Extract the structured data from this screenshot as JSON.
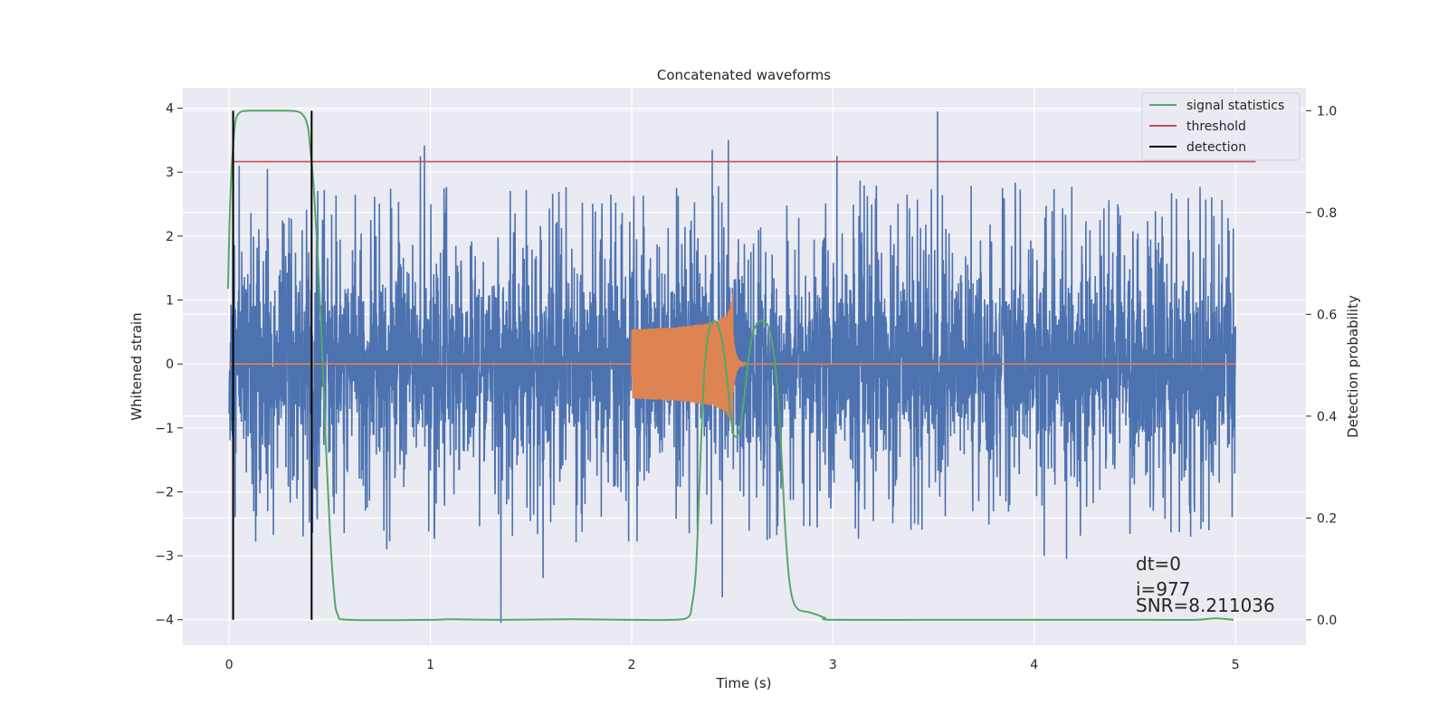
{
  "chart_data": {
    "type": "line",
    "title": "Concatenated waveforms",
    "xlabel": "Time (s)",
    "ylabel": "Whitened strain",
    "y2label": "Detection probability",
    "xlim": [
      -0.23,
      5.35
    ],
    "ylim": [
      -4.4,
      4.32
    ],
    "y2lim": [
      -0.05,
      1.045
    ],
    "x_ticks": [
      0,
      1,
      2,
      3,
      4,
      5
    ],
    "y_ticks": [
      -4,
      -3,
      -2,
      -1,
      0,
      1,
      2,
      3,
      4
    ],
    "y2_ticks": [
      0.0,
      0.2,
      0.4,
      0.6,
      0.8,
      1.0
    ],
    "y2_tick_labels": [
      "0.0",
      "0.2",
      "0.4",
      "0.6",
      "0.8",
      "1.0"
    ],
    "grid": true,
    "legend_position": "top-right",
    "series": [
      {
        "name": "",
        "kind": "noise",
        "axis": "left",
        "color": "#4c72b0",
        "x_range": [
          0,
          5
        ],
        "peaks": [
          {
            "x": 0.02,
            "y": 2.6
          },
          {
            "x": 0.05,
            "y": 3.1
          },
          {
            "x": 0.19,
            "y": 3.05
          },
          {
            "x": 0.95,
            "y": 3.25
          },
          {
            "x": 0.97,
            "y": 3.42
          },
          {
            "x": 1.35,
            "y": -4.05
          },
          {
            "x": 1.56,
            "y": -3.35
          },
          {
            "x": 2.4,
            "y": 3.35
          },
          {
            "x": 2.45,
            "y": -3.65
          },
          {
            "x": 2.48,
            "y": 3.5
          },
          {
            "x": 3.02,
            "y": 3.25
          },
          {
            "x": 3.52,
            "y": 3.95
          },
          {
            "x": 4.05,
            "y": -3.0
          },
          {
            "x": 4.16,
            "y": -3.05
          }
        ]
      },
      {
        "name": "",
        "kind": "chirp",
        "axis": "left",
        "color": "#dd8452",
        "start": 2.0,
        "merger": 2.5,
        "end": 2.57,
        "amp_start": 0.3,
        "amp_peak": 1.12,
        "amp_min": -1.3
      },
      {
        "name": "signal statistics",
        "axis": "right",
        "color": "#55a868",
        "x": [
          -0.005,
          0.0,
          0.01,
          0.02,
          0.03,
          0.04,
          0.06,
          0.1,
          0.2,
          0.33,
          0.37,
          0.39,
          0.4,
          0.42,
          0.44,
          0.46,
          0.48,
          0.5,
          0.52,
          0.54,
          0.6,
          1.0,
          1.1,
          1.35,
          1.7,
          2.0,
          2.2,
          2.28,
          2.3,
          2.32,
          2.34,
          2.36,
          2.38,
          2.4,
          2.42,
          2.44,
          2.46,
          2.48,
          2.5,
          2.52,
          2.54,
          2.56,
          2.58,
          2.6,
          2.63,
          2.66,
          2.68,
          2.7,
          2.72,
          2.74,
          2.76,
          2.78,
          2.8,
          2.83,
          2.88,
          2.92,
          2.96,
          3.0,
          3.5,
          4.0,
          4.5,
          4.8,
          4.9,
          4.99
        ],
        "y": [
          0.65,
          0.75,
          0.87,
          0.93,
          0.975,
          0.99,
          0.998,
          1.0,
          1.0,
          0.999,
          0.99,
          0.97,
          0.94,
          0.85,
          0.72,
          0.55,
          0.35,
          0.18,
          0.06,
          0.01,
          0.0,
          0.0,
          0.001,
          0.0,
          0.001,
          0.0,
          0.0,
          0.005,
          0.03,
          0.1,
          0.3,
          0.48,
          0.56,
          0.585,
          0.585,
          0.565,
          0.52,
          0.45,
          0.375,
          0.36,
          0.38,
          0.44,
          0.51,
          0.56,
          0.585,
          0.585,
          0.575,
          0.54,
          0.47,
          0.36,
          0.2,
          0.09,
          0.04,
          0.02,
          0.015,
          0.01,
          0.004,
          0.0,
          0.0,
          0.0,
          0.0,
          0.0,
          0.003,
          0.0
        ]
      },
      {
        "name": "threshold",
        "axis": "right",
        "color": "#c44e52",
        "x": [
          0.02,
          5.1
        ],
        "y": [
          0.9,
          0.9
        ]
      },
      {
        "name": "detection",
        "axis": "right",
        "color": "#000000",
        "vlines": [
          0.02,
          0.41
        ],
        "ymin": 0.0,
        "ymax": 1.0
      }
    ],
    "annotations": [
      "dt=0",
      "i=977",
      "SNR=8.211036"
    ]
  }
}
